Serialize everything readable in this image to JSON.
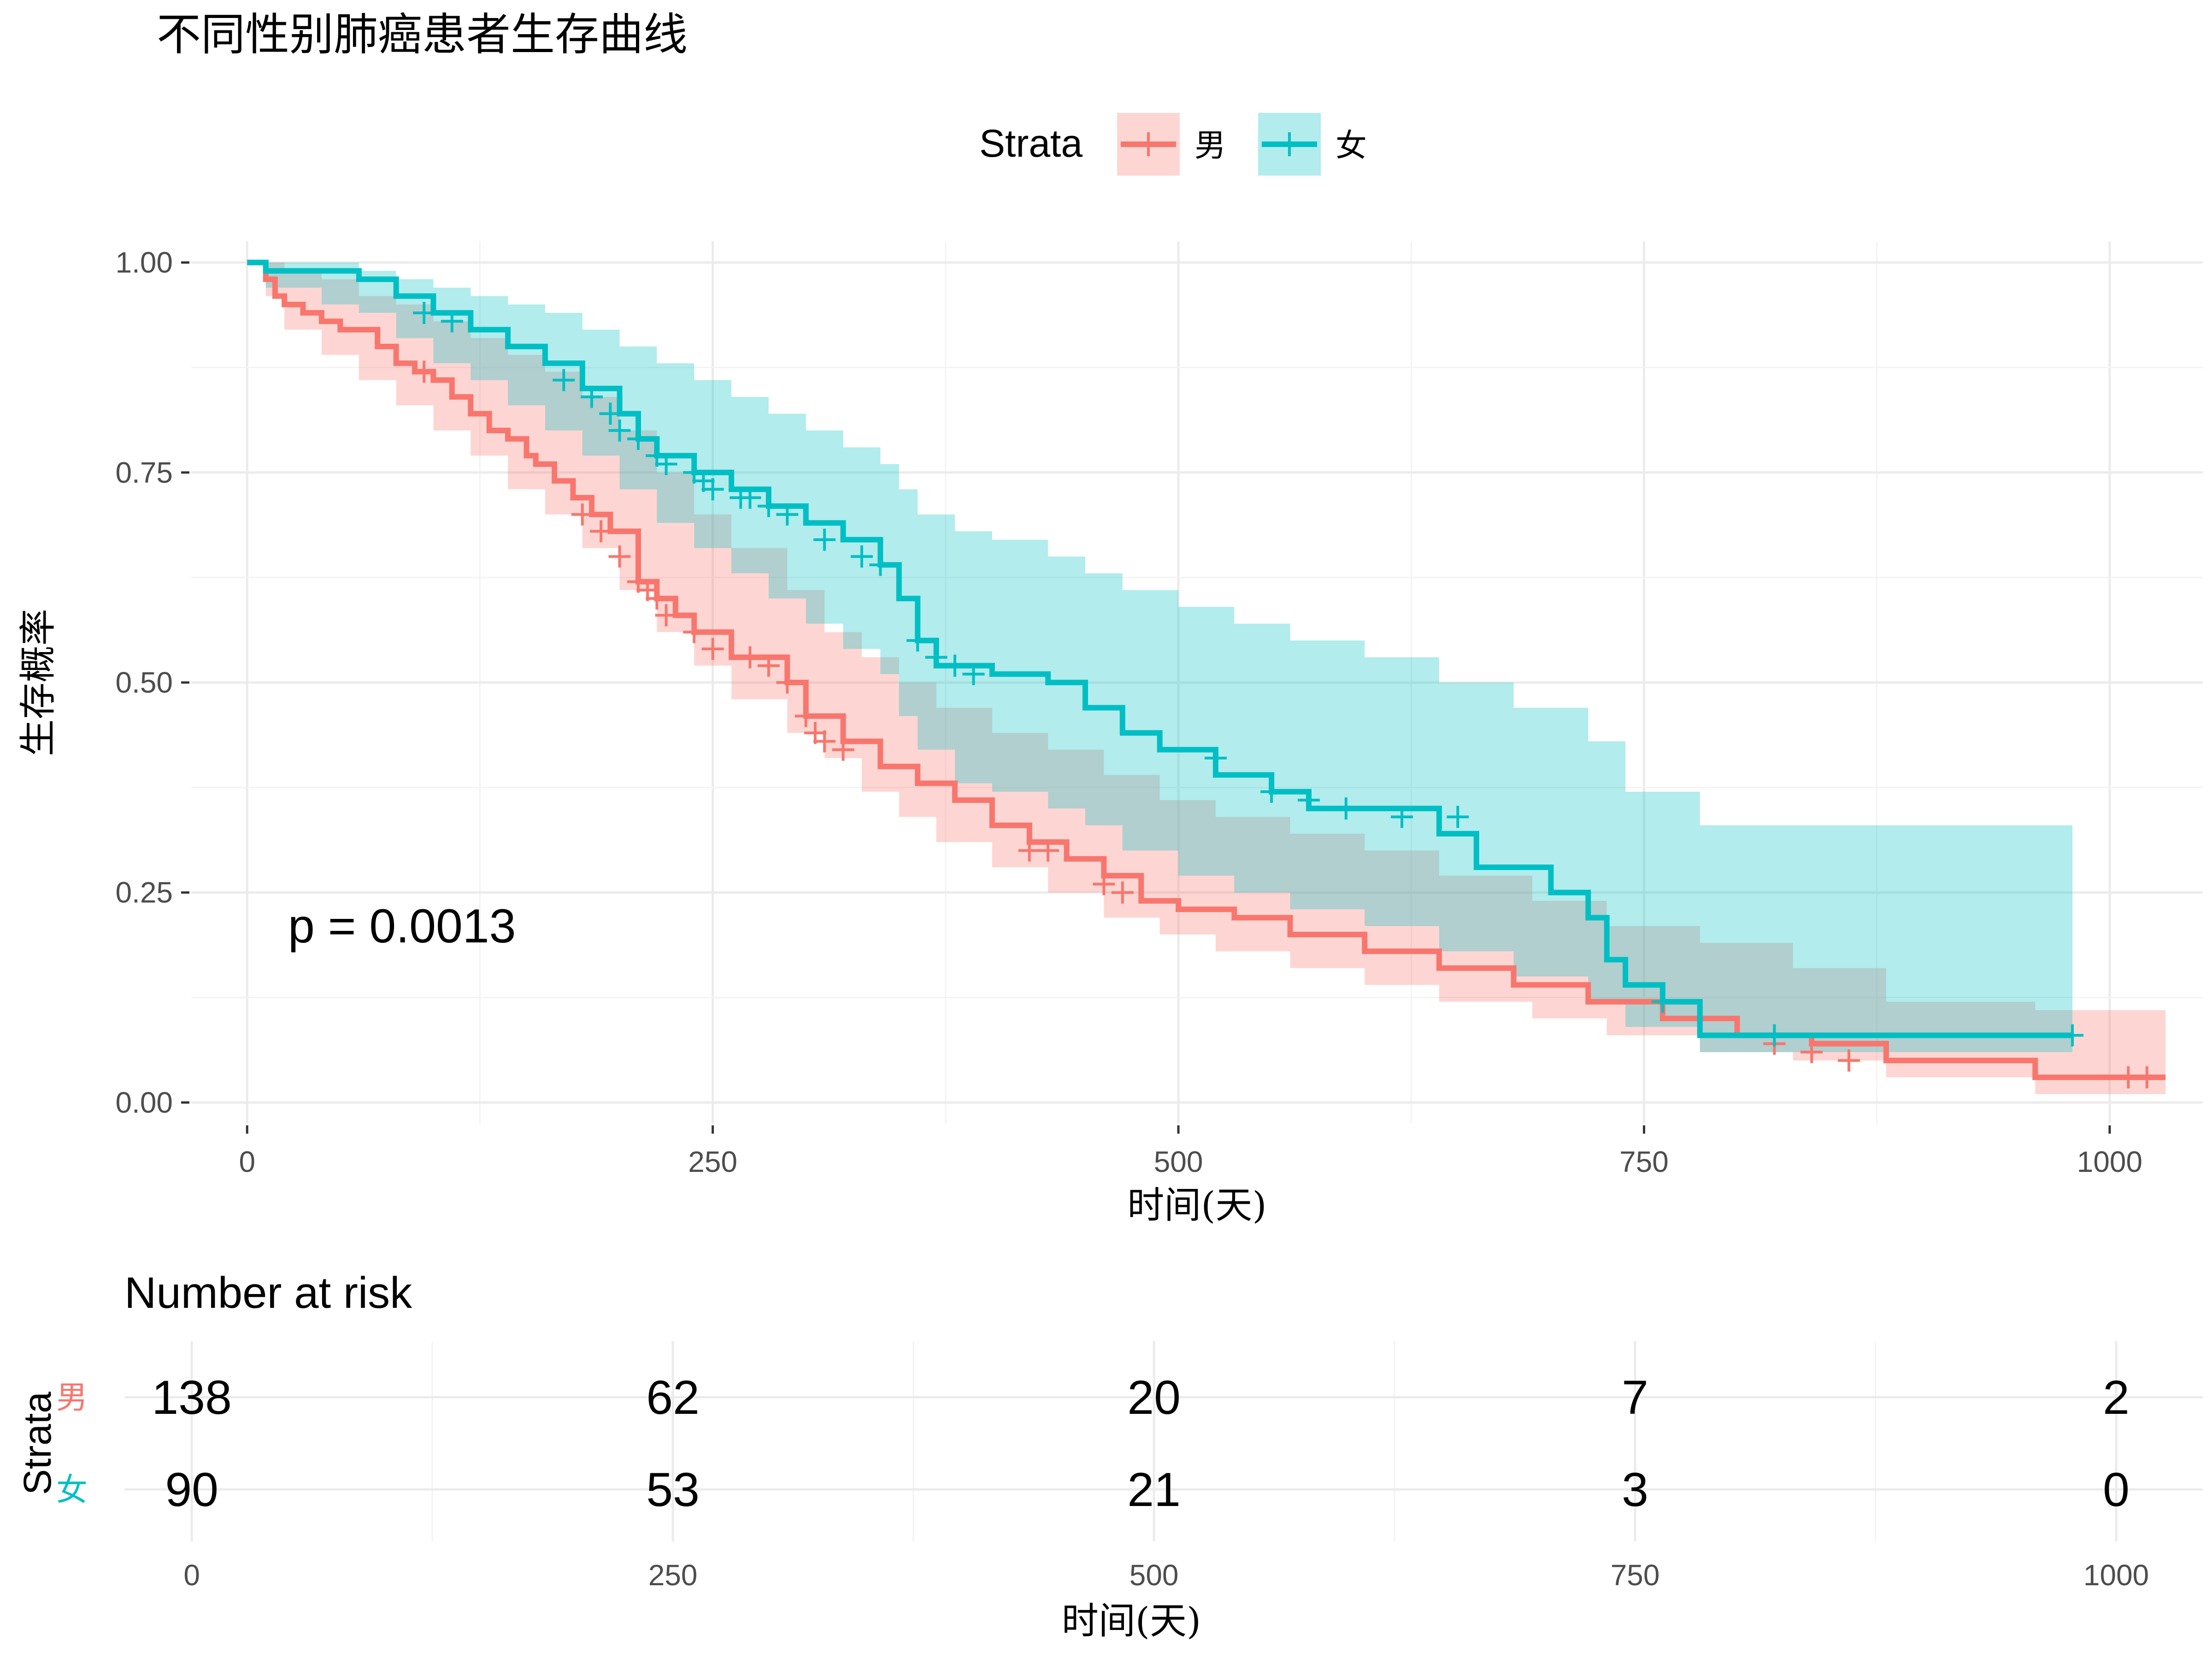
{
  "chart_data": {
    "type": "line",
    "subtype": "kaplan-meier",
    "title": "不同性别肺癌患者生存曲线",
    "xlabel": "时间(天)",
    "ylabel": "生存概率",
    "xlim": [
      -30,
      1050
    ],
    "ylim": [
      -0.025,
      1.025
    ],
    "x_ticks": [
      0,
      250,
      500,
      750,
      1000
    ],
    "x_tick_labels": [
      "0",
      "250",
      "500",
      "750",
      "1000"
    ],
    "y_ticks": [
      0,
      0.25,
      0.5,
      0.75,
      1.0
    ],
    "y_tick_labels": [
      "0.00",
      "0.25",
      "0.50",
      "0.75",
      "1.00"
    ],
    "grid": true,
    "legend": {
      "title": "Strata",
      "position": "top"
    },
    "annotation": "p = 0.0013",
    "series": [
      {
        "name": "男",
        "color": "#F8766D",
        "steps": [
          [
            0,
            1.0
          ],
          [
            10,
            0.98
          ],
          [
            15,
            0.96
          ],
          [
            20,
            0.95
          ],
          [
            30,
            0.94
          ],
          [
            40,
            0.93
          ],
          [
            50,
            0.92
          ],
          [
            70,
            0.9
          ],
          [
            80,
            0.88
          ],
          [
            90,
            0.87
          ],
          [
            100,
            0.86
          ],
          [
            110,
            0.84
          ],
          [
            120,
            0.82
          ],
          [
            130,
            0.8
          ],
          [
            140,
            0.79
          ],
          [
            150,
            0.77
          ],
          [
            155,
            0.76
          ],
          [
            165,
            0.74
          ],
          [
            175,
            0.72
          ],
          [
            185,
            0.7
          ],
          [
            195,
            0.68
          ],
          [
            210,
            0.62
          ],
          [
            220,
            0.6
          ],
          [
            230,
            0.58
          ],
          [
            240,
            0.56
          ],
          [
            260,
            0.53
          ],
          [
            290,
            0.5
          ],
          [
            300,
            0.46
          ],
          [
            320,
            0.43
          ],
          [
            340,
            0.4
          ],
          [
            360,
            0.38
          ],
          [
            380,
            0.36
          ],
          [
            400,
            0.33
          ],
          [
            420,
            0.31
          ],
          [
            440,
            0.29
          ],
          [
            460,
            0.27
          ],
          [
            480,
            0.24
          ],
          [
            500,
            0.23
          ],
          [
            530,
            0.22
          ],
          [
            560,
            0.2
          ],
          [
            600,
            0.18
          ],
          [
            640,
            0.16
          ],
          [
            680,
            0.14
          ],
          [
            720,
            0.12
          ],
          [
            760,
            0.1
          ],
          [
            800,
            0.08
          ],
          [
            840,
            0.07
          ],
          [
            880,
            0.05
          ],
          [
            960,
            0.03
          ],
          [
            1030,
            0.03
          ]
        ],
        "lower": [
          [
            0,
            1.0
          ],
          [
            10,
            0.96
          ],
          [
            20,
            0.92
          ],
          [
            40,
            0.89
          ],
          [
            60,
            0.86
          ],
          [
            80,
            0.83
          ],
          [
            100,
            0.8
          ],
          [
            120,
            0.77
          ],
          [
            140,
            0.73
          ],
          [
            160,
            0.7
          ],
          [
            180,
            0.66
          ],
          [
            200,
            0.61
          ],
          [
            220,
            0.56
          ],
          [
            240,
            0.52
          ],
          [
            260,
            0.48
          ],
          [
            290,
            0.44
          ],
          [
            310,
            0.41
          ],
          [
            330,
            0.37
          ],
          [
            350,
            0.34
          ],
          [
            370,
            0.31
          ],
          [
            400,
            0.28
          ],
          [
            430,
            0.25
          ],
          [
            460,
            0.22
          ],
          [
            490,
            0.2
          ],
          [
            520,
            0.18
          ],
          [
            560,
            0.16
          ],
          [
            600,
            0.14
          ],
          [
            640,
            0.12
          ],
          [
            690,
            0.1
          ],
          [
            730,
            0.08
          ],
          [
            780,
            0.06
          ],
          [
            830,
            0.05
          ],
          [
            880,
            0.03
          ],
          [
            960,
            0.01
          ],
          [
            1030,
            0.01
          ]
        ],
        "upper": [
          [
            0,
            1.0
          ],
          [
            10,
            1.0
          ],
          [
            20,
            0.99
          ],
          [
            40,
            0.98
          ],
          [
            60,
            0.96
          ],
          [
            80,
            0.95
          ],
          [
            100,
            0.93
          ],
          [
            120,
            0.91
          ],
          [
            140,
            0.89
          ],
          [
            160,
            0.87
          ],
          [
            180,
            0.84
          ],
          [
            200,
            0.8
          ],
          [
            220,
            0.75
          ],
          [
            240,
            0.7
          ],
          [
            260,
            0.66
          ],
          [
            290,
            0.61
          ],
          [
            310,
            0.56
          ],
          [
            330,
            0.53
          ],
          [
            350,
            0.5
          ],
          [
            370,
            0.47
          ],
          [
            400,
            0.44
          ],
          [
            430,
            0.42
          ],
          [
            460,
            0.39
          ],
          [
            490,
            0.36
          ],
          [
            520,
            0.34
          ],
          [
            560,
            0.32
          ],
          [
            600,
            0.3
          ],
          [
            640,
            0.27
          ],
          [
            690,
            0.24
          ],
          [
            730,
            0.21
          ],
          [
            780,
            0.19
          ],
          [
            830,
            0.16
          ],
          [
            880,
            0.12
          ],
          [
            960,
            0.11
          ],
          [
            1030,
            0.11
          ]
        ],
        "censored": [
          [
            95,
            0.87
          ],
          [
            180,
            0.7
          ],
          [
            190,
            0.68
          ],
          [
            200,
            0.65
          ],
          [
            210,
            0.62
          ],
          [
            215,
            0.61
          ],
          [
            220,
            0.6
          ],
          [
            225,
            0.58
          ],
          [
            240,
            0.56
          ],
          [
            250,
            0.54
          ],
          [
            270,
            0.53
          ],
          [
            280,
            0.52
          ],
          [
            290,
            0.5
          ],
          [
            300,
            0.46
          ],
          [
            305,
            0.44
          ],
          [
            310,
            0.43
          ],
          [
            320,
            0.42
          ],
          [
            420,
            0.3
          ],
          [
            430,
            0.3
          ],
          [
            460,
            0.26
          ],
          [
            470,
            0.25
          ],
          [
            820,
            0.07
          ],
          [
            840,
            0.06
          ],
          [
            860,
            0.05
          ],
          [
            1010,
            0.03
          ],
          [
            1020,
            0.03
          ]
        ],
        "risk": [
          138,
          62,
          20,
          7,
          2
        ]
      },
      {
        "name": "女",
        "color": "#00BFC4",
        "steps": [
          [
            0,
            1.0
          ],
          [
            10,
            0.99
          ],
          [
            60,
            0.98
          ],
          [
            80,
            0.96
          ],
          [
            100,
            0.94
          ],
          [
            120,
            0.92
          ],
          [
            140,
            0.9
          ],
          [
            160,
            0.88
          ],
          [
            180,
            0.85
          ],
          [
            200,
            0.82
          ],
          [
            210,
            0.79
          ],
          [
            220,
            0.77
          ],
          [
            240,
            0.75
          ],
          [
            260,
            0.73
          ],
          [
            280,
            0.71
          ],
          [
            300,
            0.69
          ],
          [
            320,
            0.67
          ],
          [
            340,
            0.64
          ],
          [
            350,
            0.6
          ],
          [
            360,
            0.55
          ],
          [
            370,
            0.52
          ],
          [
            400,
            0.51
          ],
          [
            430,
            0.5
          ],
          [
            450,
            0.47
          ],
          [
            470,
            0.44
          ],
          [
            490,
            0.42
          ],
          [
            520,
            0.39
          ],
          [
            550,
            0.37
          ],
          [
            570,
            0.35
          ],
          [
            640,
            0.32
          ],
          [
            660,
            0.28
          ],
          [
            700,
            0.25
          ],
          [
            720,
            0.22
          ],
          [
            730,
            0.17
          ],
          [
            740,
            0.14
          ],
          [
            760,
            0.12
          ],
          [
            780,
            0.08
          ],
          [
            980,
            0.08
          ]
        ],
        "lower": [
          [
            0,
            1.0
          ],
          [
            10,
            0.97
          ],
          [
            40,
            0.95
          ],
          [
            60,
            0.94
          ],
          [
            80,
            0.91
          ],
          [
            100,
            0.88
          ],
          [
            120,
            0.86
          ],
          [
            140,
            0.83
          ],
          [
            160,
            0.8
          ],
          [
            180,
            0.77
          ],
          [
            200,
            0.73
          ],
          [
            220,
            0.69
          ],
          [
            240,
            0.66
          ],
          [
            260,
            0.63
          ],
          [
            280,
            0.6
          ],
          [
            300,
            0.57
          ],
          [
            320,
            0.54
          ],
          [
            340,
            0.51
          ],
          [
            350,
            0.46
          ],
          [
            360,
            0.42
          ],
          [
            380,
            0.38
          ],
          [
            400,
            0.37
          ],
          [
            430,
            0.35
          ],
          [
            450,
            0.33
          ],
          [
            470,
            0.3
          ],
          [
            500,
            0.27
          ],
          [
            530,
            0.25
          ],
          [
            560,
            0.23
          ],
          [
            600,
            0.21
          ],
          [
            640,
            0.18
          ],
          [
            680,
            0.15
          ],
          [
            720,
            0.12
          ],
          [
            740,
            0.09
          ],
          [
            780,
            0.06
          ],
          [
            980,
            0.06
          ]
        ],
        "upper": [
          [
            0,
            1.0
          ],
          [
            10,
            1.0
          ],
          [
            40,
            1.0
          ],
          [
            60,
            0.99
          ],
          [
            80,
            0.98
          ],
          [
            100,
            0.97
          ],
          [
            120,
            0.96
          ],
          [
            140,
            0.95
          ],
          [
            160,
            0.94
          ],
          [
            180,
            0.92
          ],
          [
            200,
            0.9
          ],
          [
            220,
            0.88
          ],
          [
            240,
            0.86
          ],
          [
            260,
            0.84
          ],
          [
            280,
            0.82
          ],
          [
            300,
            0.8
          ],
          [
            320,
            0.78
          ],
          [
            340,
            0.76
          ],
          [
            350,
            0.73
          ],
          [
            360,
            0.7
          ],
          [
            380,
            0.68
          ],
          [
            400,
            0.67
          ],
          [
            430,
            0.65
          ],
          [
            450,
            0.63
          ],
          [
            470,
            0.61
          ],
          [
            500,
            0.59
          ],
          [
            530,
            0.57
          ],
          [
            560,
            0.55
          ],
          [
            600,
            0.53
          ],
          [
            640,
            0.5
          ],
          [
            680,
            0.47
          ],
          [
            720,
            0.43
          ],
          [
            740,
            0.37
          ],
          [
            780,
            0.33
          ],
          [
            980,
            0.33
          ]
        ],
        "censored": [
          [
            95,
            0.94
          ],
          [
            110,
            0.93
          ],
          [
            170,
            0.86
          ],
          [
            185,
            0.84
          ],
          [
            195,
            0.82
          ],
          [
            200,
            0.8
          ],
          [
            210,
            0.79
          ],
          [
            220,
            0.77
          ],
          [
            225,
            0.76
          ],
          [
            240,
            0.75
          ],
          [
            245,
            0.74
          ],
          [
            250,
            0.73
          ],
          [
            265,
            0.72
          ],
          [
            270,
            0.72
          ],
          [
            280,
            0.71
          ],
          [
            290,
            0.7
          ],
          [
            310,
            0.67
          ],
          [
            330,
            0.65
          ],
          [
            340,
            0.64
          ],
          [
            360,
            0.55
          ],
          [
            370,
            0.53
          ],
          [
            380,
            0.52
          ],
          [
            390,
            0.51
          ],
          [
            520,
            0.41
          ],
          [
            550,
            0.37
          ],
          [
            570,
            0.36
          ],
          [
            590,
            0.35
          ],
          [
            620,
            0.34
          ],
          [
            650,
            0.34
          ],
          [
            760,
            0.12
          ],
          [
            820,
            0.08
          ],
          [
            980,
            0.08
          ]
        ],
        "risk": [
          90,
          53,
          21,
          3,
          0
        ]
      }
    ],
    "risk_table": {
      "title": "Number at risk",
      "ylabel": "Strata",
      "xlabel": "时间(天)",
      "times": [
        0,
        250,
        500,
        750,
        1000
      ],
      "time_labels": [
        "0",
        "250",
        "500",
        "750",
        "1000"
      ]
    }
  }
}
